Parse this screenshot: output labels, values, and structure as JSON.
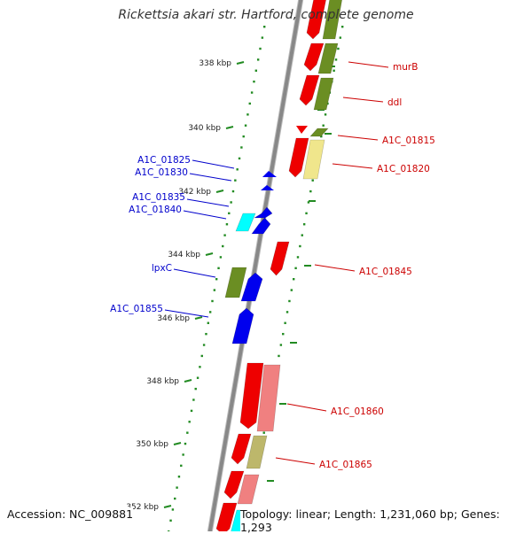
{
  "title": "Rickettsia akari str. Hartford, complete genome",
  "footer": {
    "accession": "Accession: NC_009881",
    "summary": "Topology: linear; Length: 1,231,060 bp; Genes: 1,293"
  },
  "ticks": [
    "338 kbp",
    "340 kbp",
    "342 kbp",
    "344 kbp",
    "346 kbp",
    "348 kbp",
    "350 kbp",
    "352 kbp"
  ],
  "colors": {
    "forward_label": "#cc0000",
    "reverse_label": "#0000cc",
    "red": "#ee0000",
    "blue": "#0000ee",
    "olive": "#6b8e23",
    "pale_yellow": "#f0e68c",
    "light_red": "#f08080",
    "khaki": "#bdb76b",
    "cyan": "#00ffff",
    "backbone": "#888888",
    "tick": "#228b22"
  },
  "labels": [
    {
      "text": "murB",
      "strand": "forward"
    },
    {
      "text": "ddl",
      "strand": "forward"
    },
    {
      "text": "A1C_01815",
      "strand": "forward"
    },
    {
      "text": "A1C_01820",
      "strand": "forward"
    },
    {
      "text": "A1C_01845",
      "strand": "forward"
    },
    {
      "text": "A1C_01860",
      "strand": "forward"
    },
    {
      "text": "A1C_01865",
      "strand": "forward"
    },
    {
      "text": "A1C_01825",
      "strand": "reverse"
    },
    {
      "text": "A1C_01830",
      "strand": "reverse"
    },
    {
      "text": "A1C_01835",
      "strand": "reverse"
    },
    {
      "text": "A1C_01840",
      "strand": "reverse"
    },
    {
      "text": "lpxC",
      "strand": "reverse"
    },
    {
      "text": "A1C_01855",
      "strand": "reverse"
    }
  ]
}
